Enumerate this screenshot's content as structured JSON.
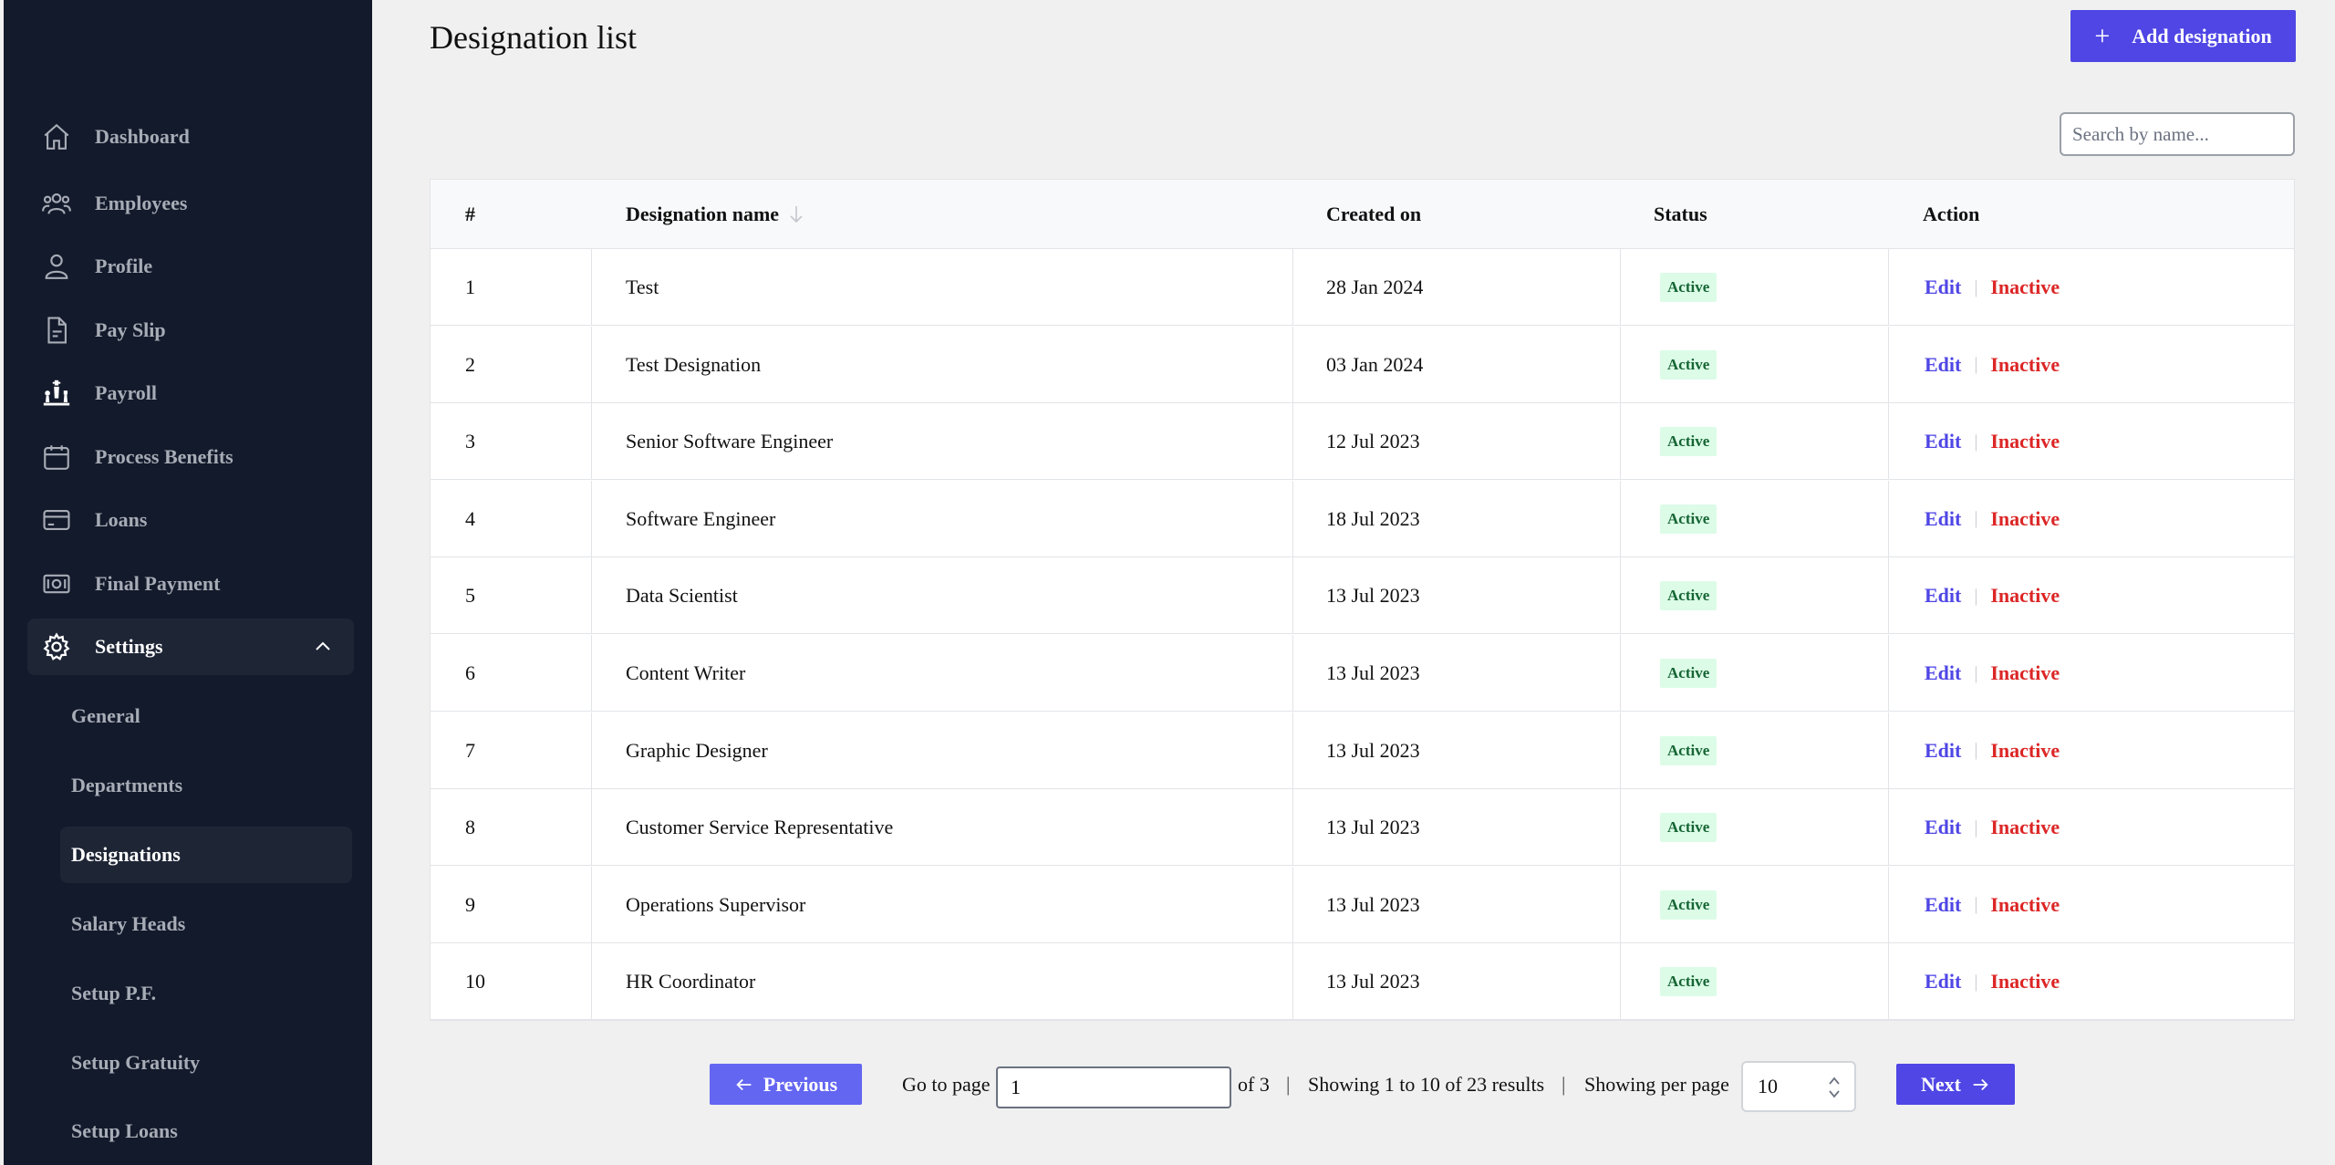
{
  "sidebar": {
    "items": [
      {
        "label": "Dashboard",
        "icon": "home-icon"
      },
      {
        "label": "Employees",
        "icon": "users-icon"
      },
      {
        "label": "Profile",
        "icon": "user-icon"
      },
      {
        "label": "Pay Slip",
        "icon": "document-icon"
      },
      {
        "label": "Payroll",
        "icon": "chess-icon"
      },
      {
        "label": "Process Benefits",
        "icon": "calendar-icon"
      },
      {
        "label": "Loans",
        "icon": "credit-card-icon"
      },
      {
        "label": "Final Payment",
        "icon": "cash-icon"
      },
      {
        "label": "Settings",
        "icon": "gear-icon"
      }
    ],
    "settings_sub": [
      {
        "label": "General"
      },
      {
        "label": "Departments"
      },
      {
        "label": "Designations"
      },
      {
        "label": "Salary Heads"
      },
      {
        "label": "Setup P.F."
      },
      {
        "label": "Setup Gratuity"
      },
      {
        "label": "Setup Loans"
      }
    ],
    "active_sub": "Designations"
  },
  "header": {
    "title": "Designation list",
    "add_button": "Add designation"
  },
  "search": {
    "placeholder": "Search by name...",
    "value": ""
  },
  "table": {
    "columns": [
      "#",
      "Designation name",
      "Created on",
      "Status",
      "Action"
    ],
    "action_edit": "Edit",
    "action_separator": "|",
    "action_inactive": "Inactive",
    "rows": [
      {
        "num": "1",
        "name": "Test",
        "created": "28 Jan 2024",
        "status": "Active"
      },
      {
        "num": "2",
        "name": "Test Designation",
        "created": "03 Jan 2024",
        "status": "Active"
      },
      {
        "num": "3",
        "name": "Senior Software Engineer",
        "created": "12 Jul 2023",
        "status": "Active"
      },
      {
        "num": "4",
        "name": "Software Engineer",
        "created": "18 Jul 2023",
        "status": "Active"
      },
      {
        "num": "5",
        "name": "Data Scientist",
        "created": "13 Jul 2023",
        "status": "Active"
      },
      {
        "num": "6",
        "name": "Content Writer",
        "created": "13 Jul 2023",
        "status": "Active"
      },
      {
        "num": "7",
        "name": "Graphic Designer",
        "created": "13 Jul 2023",
        "status": "Active"
      },
      {
        "num": "8",
        "name": "Customer Service Representative",
        "created": "13 Jul 2023",
        "status": "Active"
      },
      {
        "num": "9",
        "name": "Operations Supervisor",
        "created": "13 Jul 2023",
        "status": "Active"
      },
      {
        "num": "10",
        "name": "HR Coordinator",
        "created": "13 Jul 2023",
        "status": "Active"
      }
    ]
  },
  "pagination": {
    "previous": "Previous",
    "go_to_page": "Go to page",
    "page_value": "1",
    "of_total": "of 3",
    "divider": "|",
    "showing": "Showing 1 to 10 of 23 results",
    "per_page_label": "Showing per page",
    "per_page_value": "10",
    "next": "Next"
  },
  "colors": {
    "sidebar_bg": "#131a2b",
    "accent": "#4f46e5",
    "danger": "#dc2626",
    "active_badge_bg": "#dcfce7",
    "active_badge_text": "#166534"
  }
}
